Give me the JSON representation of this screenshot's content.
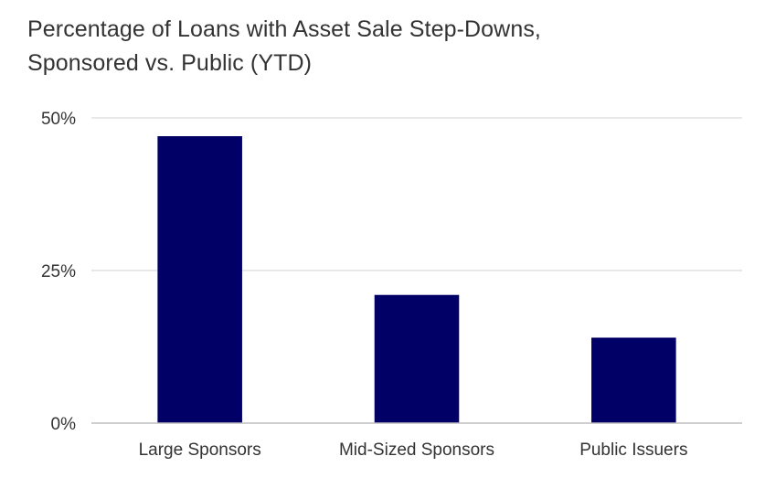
{
  "chart_data": {
    "type": "bar",
    "title_lines": [
      "Percentage of Loans with Asset Sale Step-Downs,",
      "Sponsored vs. Public (YTD)"
    ],
    "categories": [
      "Large Sponsors",
      "Mid-Sized Sponsors",
      "Public Issuers"
    ],
    "values": [
      47,
      21,
      14
    ],
    "value_unit": "%",
    "ylim": [
      0,
      50
    ],
    "yticks": [
      0,
      25,
      50
    ],
    "ytick_labels": [
      "0%",
      "25%",
      "50%"
    ],
    "xlabel": "",
    "ylabel": "",
    "grid": true,
    "legend": "none",
    "colors": {
      "bar": "#000066",
      "grid": "#d9d9d9",
      "axis": "#bfbfbf",
      "text": "#333333"
    }
  }
}
